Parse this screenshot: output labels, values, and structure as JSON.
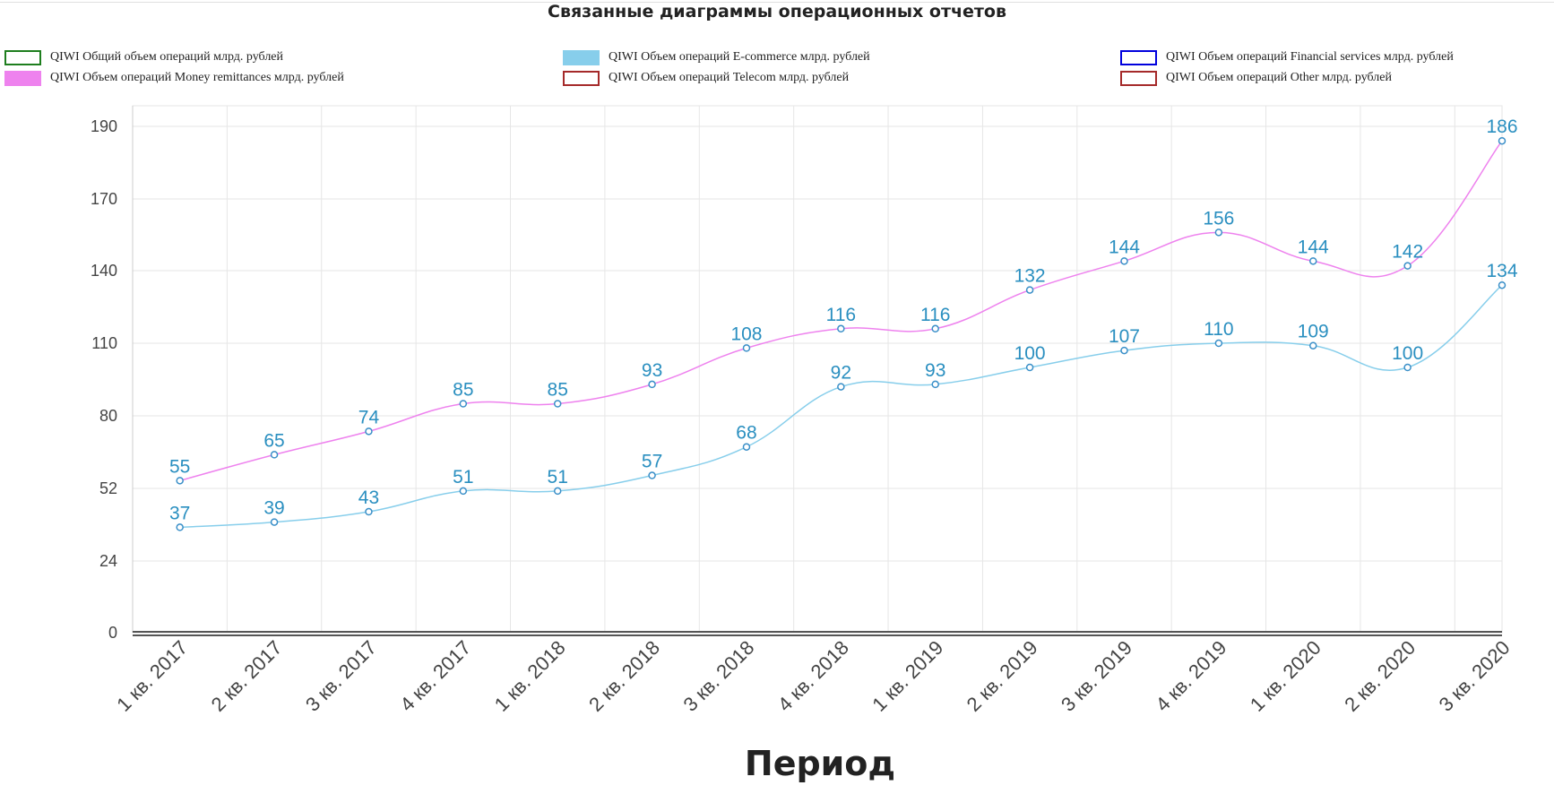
{
  "chart_data": {
    "type": "line",
    "title": "Связанные диаграммы операционных отчетов",
    "xlabel": "Период",
    "ylabel": "",
    "categories": [
      "1 кв. 2017",
      "2 кв. 2017",
      "3 кв. 2017",
      "4 кв. 2017",
      "1 кв. 2018",
      "2 кв. 2018",
      "3 кв. 2018",
      "4 кв. 2018",
      "1 кв. 2019",
      "2 кв. 2019",
      "3 кв. 2019",
      "4 кв. 2019",
      "1 кв. 2020",
      "2 кв. 2020",
      "3 кв. 2020"
    ],
    "yticks": [
      0,
      24,
      52,
      80,
      110,
      140,
      170,
      190
    ],
    "ylim": [
      0,
      190
    ],
    "grid": true,
    "legend": [
      {
        "name": "QIWI Общий объем операций млрд. рублей",
        "color": "#1e7e1e",
        "style": "outline"
      },
      {
        "name": "QIWI Объем операций E-commerce млрд. рублей",
        "color": "#87ceeb",
        "style": "filled"
      },
      {
        "name": "QIWI Объем операций Financial services млрд. рублей",
        "color": "#0000dd",
        "style": "outline"
      },
      {
        "name": "QIWI Объем операций Money remittances млрд. рублей",
        "color": "#ee82ee",
        "style": "filled"
      },
      {
        "name": "QIWI Объем операций Telecom млрд. рублей",
        "color": "#a52a2a",
        "style": "outline"
      },
      {
        "name": "QIWI Объем операций Other млрд. рублей",
        "color": "#a52a2a",
        "style": "outline"
      }
    ],
    "series": [
      {
        "name": "QIWI Объем операций Money remittances млрд. рублей",
        "color": "#ee82ee",
        "values": [
          55,
          65,
          74,
          85,
          85,
          93,
          108,
          116,
          116,
          132,
          144,
          156,
          144,
          142,
          186
        ]
      },
      {
        "name": "QIWI Объем операций E-commerce млрд. рублей",
        "color": "#87ceeb",
        "values": [
          37,
          39,
          43,
          51,
          51,
          57,
          68,
          92,
          93,
          100,
          107,
          110,
          109,
          100,
          134
        ]
      }
    ],
    "label_color": "#2a8fc0",
    "marker_color": "#3a8fc8"
  }
}
